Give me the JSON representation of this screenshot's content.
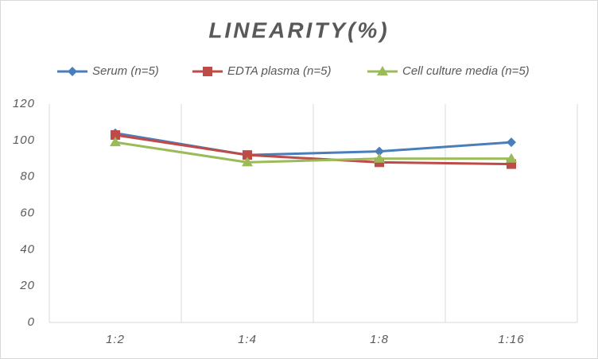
{
  "chart_data": {
    "type": "line",
    "title": "LINEARITY(%)",
    "categories": [
      "1:2",
      "1:4",
      "1:8",
      "1:16"
    ],
    "series": [
      {
        "name": "Serum (n=5)",
        "color": "#4a7ebb",
        "marker": "diamond",
        "values": [
          104,
          92,
          94,
          99
        ]
      },
      {
        "name": "EDTA plasma (n=5)",
        "color": "#be4b48",
        "marker": "square",
        "values": [
          103,
          92,
          88,
          87
        ]
      },
      {
        "name": "Cell culture media (n=5)",
        "color": "#9bbb59",
        "marker": "triangle",
        "values": [
          99,
          88,
          90,
          90
        ]
      }
    ],
    "ylim": [
      0,
      120
    ],
    "yticks": [
      0,
      20,
      40,
      60,
      80,
      100,
      120
    ],
    "grid": "vertical",
    "legend": "top"
  }
}
